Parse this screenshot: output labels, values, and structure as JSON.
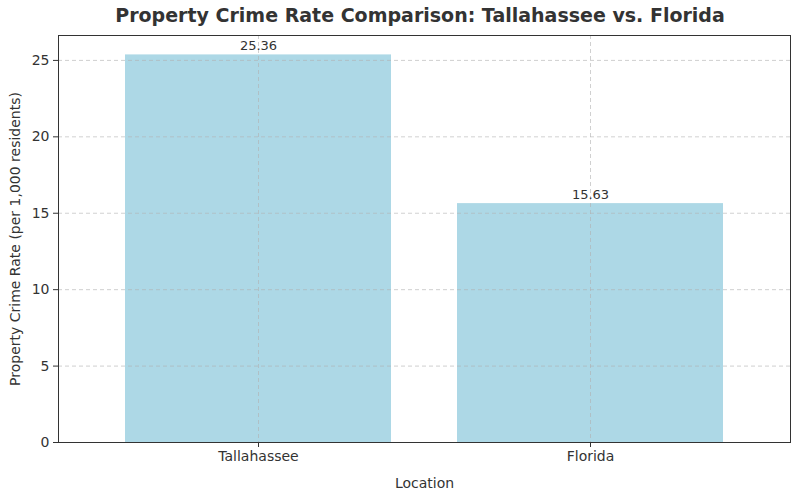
{
  "chart_data": {
    "type": "bar",
    "title": "Property Crime Rate Comparison: Tallahassee vs. Florida",
    "x_label": "Location",
    "y_label": "Property Crime Rate (per 1,000 residents)",
    "categories": [
      "Tallahassee",
      "Florida"
    ],
    "values": [
      25.36,
      15.63
    ],
    "color": "#add8e6",
    "ylim": [
      0,
      26.63
    ],
    "yticks": [
      0,
      5,
      10,
      15,
      20,
      25
    ],
    "grid": true,
    "data_labels": true
  }
}
